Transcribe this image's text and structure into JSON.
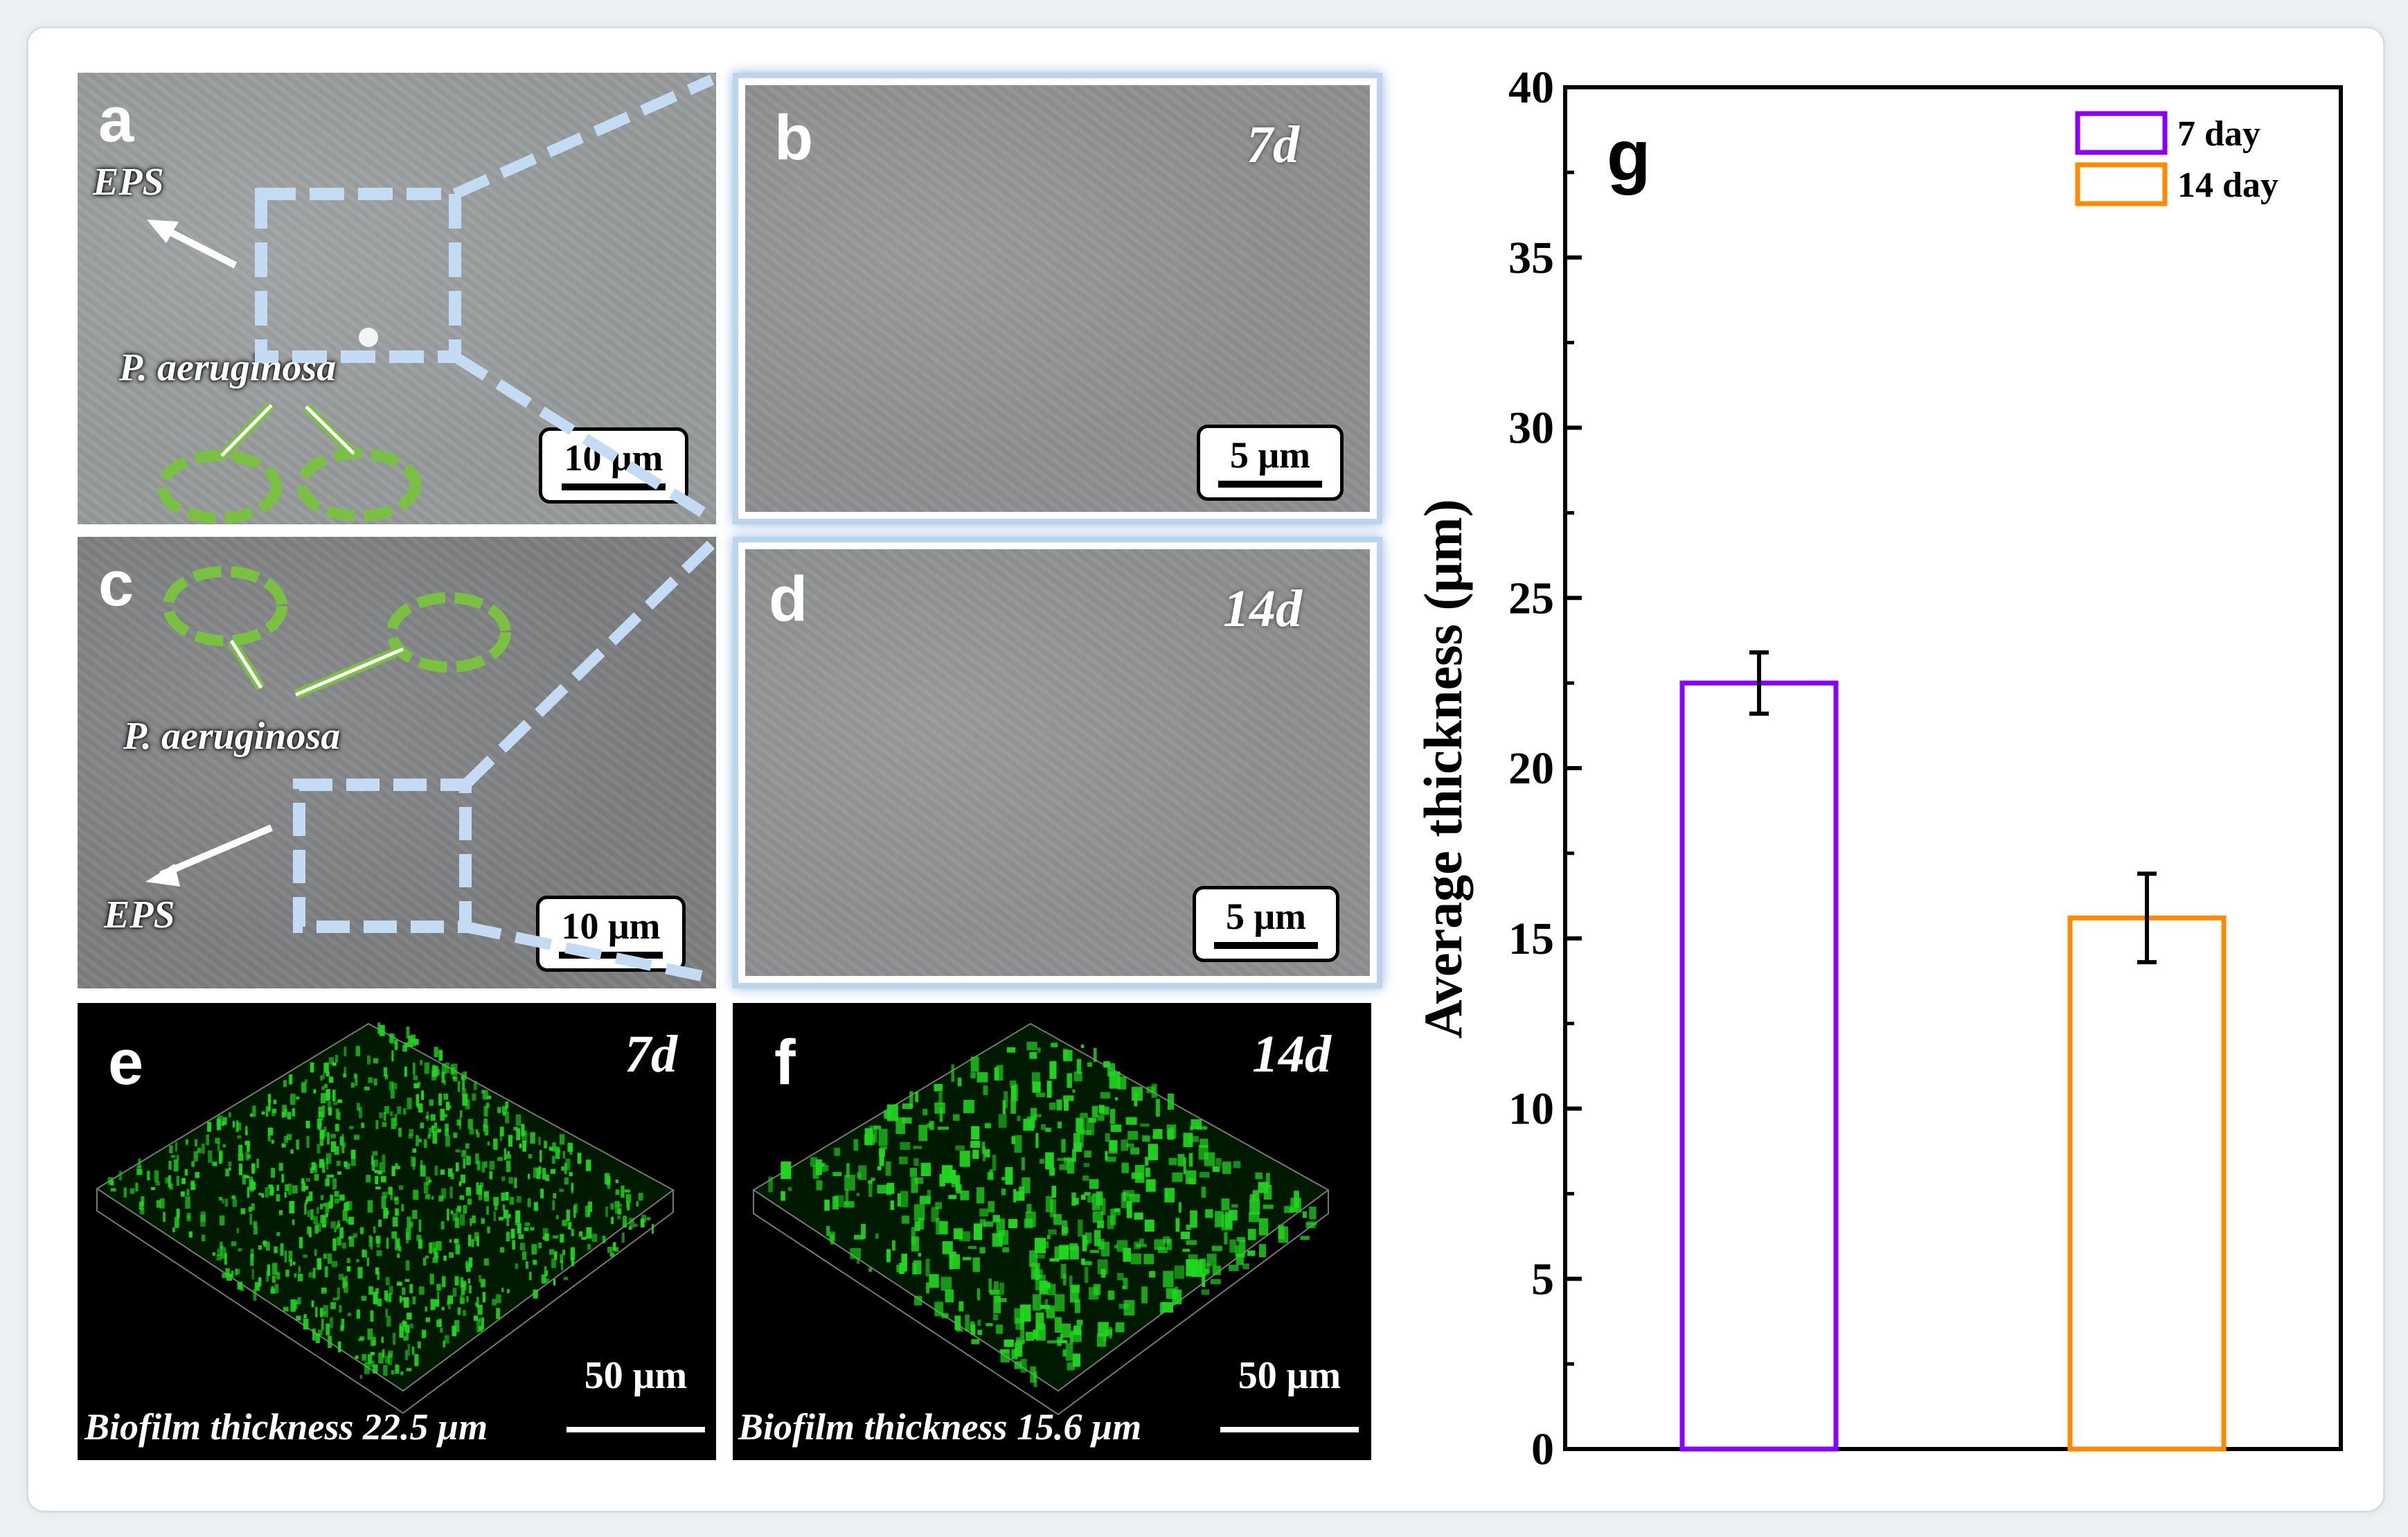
{
  "panels": {
    "a": {
      "label": "a",
      "annotation_eps": "EPS",
      "annotation_bacteria": "P. aeruginosa",
      "scale": "10 μm"
    },
    "b": {
      "label": "b",
      "day": "7d",
      "scale": "5 μm"
    },
    "c": {
      "label": "c",
      "annotation_eps": "EPS",
      "annotation_bacteria": "P. aeruginosa",
      "scale": "10 μm"
    },
    "d": {
      "label": "d",
      "day": "14d",
      "scale": "5 μm"
    },
    "e": {
      "label": "e",
      "day": "7d",
      "scale": "50 μm",
      "caption": "Biofilm thickness 22.5 μm"
    },
    "f": {
      "label": "f",
      "day": "14d",
      "scale": "50 μm",
      "caption": "Biofilm thickness 15.6 μm"
    }
  },
  "colors": {
    "annotation_green": "#79c043",
    "zoom_box_blue": "#c3dcf3",
    "series_7day": "#8a00ff",
    "series_14day": "#ff8a00",
    "confocal_green": "#22d620"
  },
  "chart_data": {
    "type": "bar",
    "panel_label": "g",
    "ylabel": "Average thickness (μm)",
    "xlabel": "",
    "ylim": [
      0,
      40
    ],
    "yticks": [
      0,
      5,
      10,
      15,
      20,
      25,
      30,
      35,
      40
    ],
    "grid": false,
    "legend_position": "top-right",
    "series": [
      {
        "name": "7 day",
        "value": 22.5,
        "error": 0.9,
        "color": "#8a00ff"
      },
      {
        "name": "14 day",
        "value": 15.6,
        "error": 1.3,
        "color": "#ff8a00"
      }
    ]
  }
}
